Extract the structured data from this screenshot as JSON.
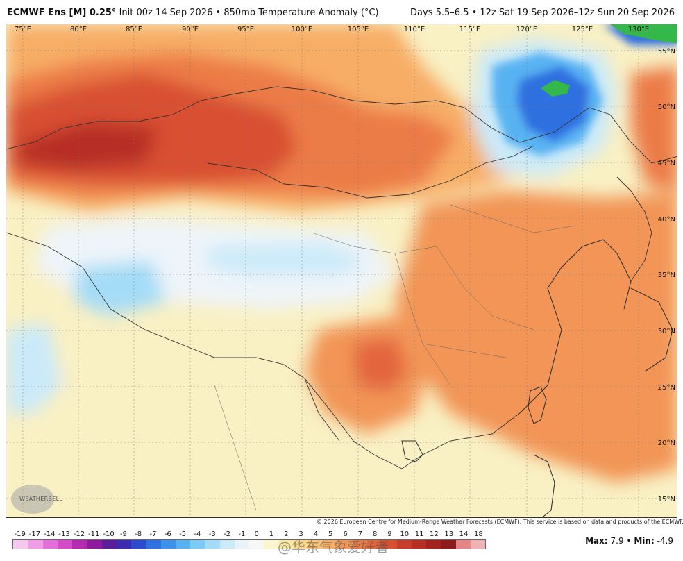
{
  "header": {
    "model": "ECMWF Ens [M] 0.25°",
    "init": "Init 00z 14 Sep 2026",
    "field": "850mb Temperature Anomaly (°C)",
    "valid": "Days 5.5–6.5 • 12z Sat 19 Sep 2026–12z Sun 20 Sep 2026"
  },
  "map": {
    "lon_labels": [
      "75°E",
      "80°E",
      "85°E",
      "90°E",
      "95°E",
      "100°E",
      "105°E",
      "110°E",
      "115°E",
      "120°E",
      "125°E",
      "130°E"
    ],
    "lat_labels": [
      "55°N",
      "50°N",
      "45°N",
      "40°N",
      "35°N",
      "30°N",
      "25°N",
      "20°N",
      "15°N"
    ]
  },
  "legend": {
    "ticks": [
      "-19",
      "-17",
      "-14",
      "-13",
      "-12",
      "-11",
      "-10",
      "-9",
      "-8",
      "-7",
      "-6",
      "-5",
      "-4",
      "-3",
      "-2",
      "-1",
      "0",
      "1",
      "2",
      "3",
      "4",
      "5",
      "6",
      "7",
      "8",
      "9",
      "10",
      "11",
      "12",
      "13",
      "14",
      "18"
    ],
    "colors": [
      "#f7c7f0",
      "#ef9ee6",
      "#e56fd8",
      "#d44cc6",
      "#b42ab0",
      "#8e1b9b",
      "#5b1d9a",
      "#3c2bb0",
      "#2e4bd0",
      "#2f6fe0",
      "#3b93ec",
      "#58b2f2",
      "#7ccaf5",
      "#a4dcf7",
      "#cbeaf9",
      "#e6f3fb",
      "#f7f7f7",
      "#fbf4cc",
      "#fbe9a3",
      "#fbd98a",
      "#f9c47a",
      "#f7ad66",
      "#f29556",
      "#ec7c47",
      "#e3653c",
      "#d84f33",
      "#c93c2b",
      "#b72e25",
      "#a5231f",
      "#8e1c1c",
      "#e58585",
      "#f0b3b3"
    ],
    "max_label": "Max:",
    "max_value": "7.9",
    "min_label": "Min:",
    "min_value": "-4.9"
  },
  "copyright": "© 2026 European Centre for Medium-Range Weather Forecasts (ECMWF). This service is based on data and products of the ECMWF.",
  "watermark": "@华东气象爱好者",
  "logo_text": "WEATHERBELL"
}
